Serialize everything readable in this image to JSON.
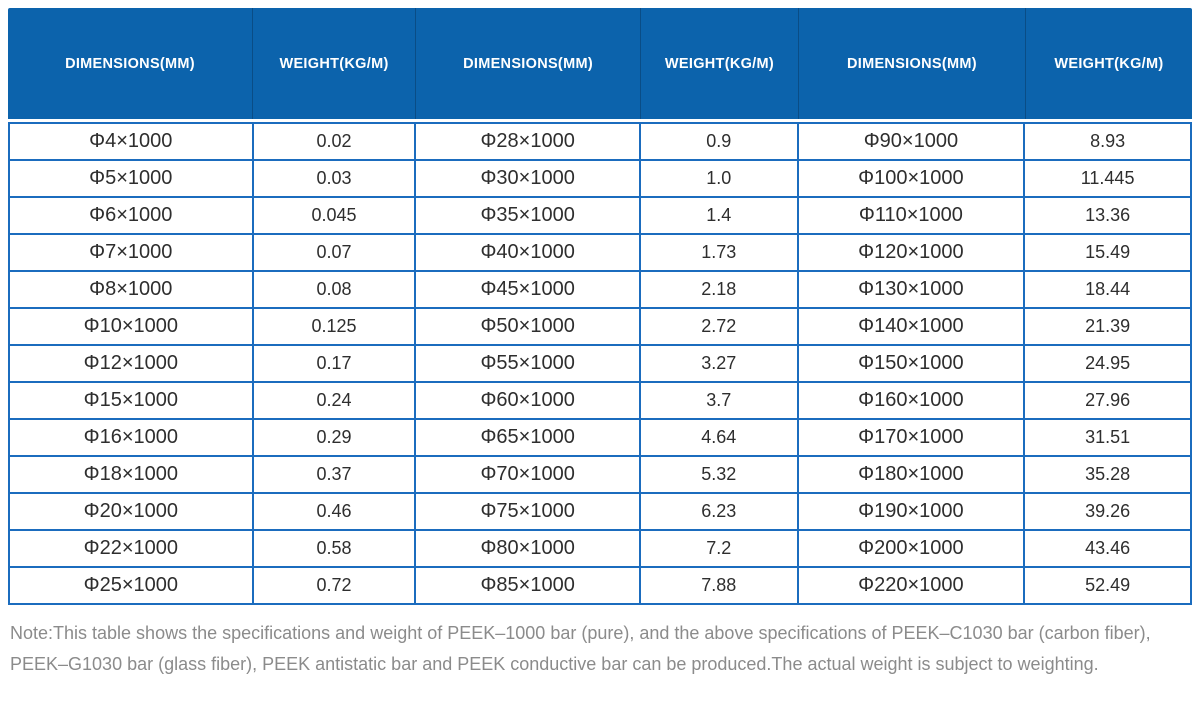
{
  "table": {
    "headers": [
      "DIMENSIONS(MM)",
      "WEIGHT(KG/M)",
      "DIMENSIONS(MM)",
      "WEIGHT(KG/M)",
      "DIMENSIONS(MM)",
      "WEIGHT(KG/M)"
    ],
    "rows": [
      [
        "Φ4×1000",
        "0.02",
        "Φ28×1000",
        "0.9",
        "Φ90×1000",
        "8.93"
      ],
      [
        "Φ5×1000",
        "0.03",
        "Φ30×1000",
        "1.0",
        "Φ100×1000",
        "11.445"
      ],
      [
        "Φ6×1000",
        "0.045",
        "Φ35×1000",
        "1.4",
        "Φ110×1000",
        "13.36"
      ],
      [
        "Φ7×1000",
        "0.07",
        "Φ40×1000",
        "1.73",
        "Φ120×1000",
        "15.49"
      ],
      [
        "Φ8×1000",
        "0.08",
        "Φ45×1000",
        "2.18",
        "Φ130×1000",
        "18.44"
      ],
      [
        "Φ10×1000",
        "0.125",
        "Φ50×1000",
        "2.72",
        "Φ140×1000",
        "21.39"
      ],
      [
        "Φ12×1000",
        "0.17",
        "Φ55×1000",
        "3.27",
        "Φ150×1000",
        "24.95"
      ],
      [
        "Φ15×1000",
        "0.24",
        "Φ60×1000",
        "3.7",
        "Φ160×1000",
        "27.96"
      ],
      [
        "Φ16×1000",
        "0.29",
        "Φ65×1000",
        "4.64",
        "Φ170×1000",
        "31.51"
      ],
      [
        "Φ18×1000",
        "0.37",
        "Φ70×1000",
        "5.32",
        "Φ180×1000",
        "35.28"
      ],
      [
        "Φ20×1000",
        "0.46",
        "Φ75×1000",
        "6.23",
        "Φ190×1000",
        "39.26"
      ],
      [
        "Φ22×1000",
        "0.58",
        "Φ80×1000",
        "7.2",
        "Φ200×1000",
        "43.46"
      ],
      [
        "Φ25×1000",
        "0.72",
        "Φ85×1000",
        "7.88",
        "Φ220×1000",
        "52.49"
      ]
    ]
  },
  "note": "Note:This table shows the specifications and weight of PEEK–1000 bar (pure), and the above specifications of PEEK–C1030 bar (carbon fiber), PEEK–G1030 bar (glass fiber), PEEK antistatic bar and PEEK conductive bar can be produced.The actual weight is subject to weighting.",
  "colors": {
    "header_bg": "#0c63ac",
    "header_separator": "#0a4d86",
    "grid_border": "#1b6cbe",
    "cell_text": "#2e2e2e",
    "note_text": "#8b8b8b"
  }
}
